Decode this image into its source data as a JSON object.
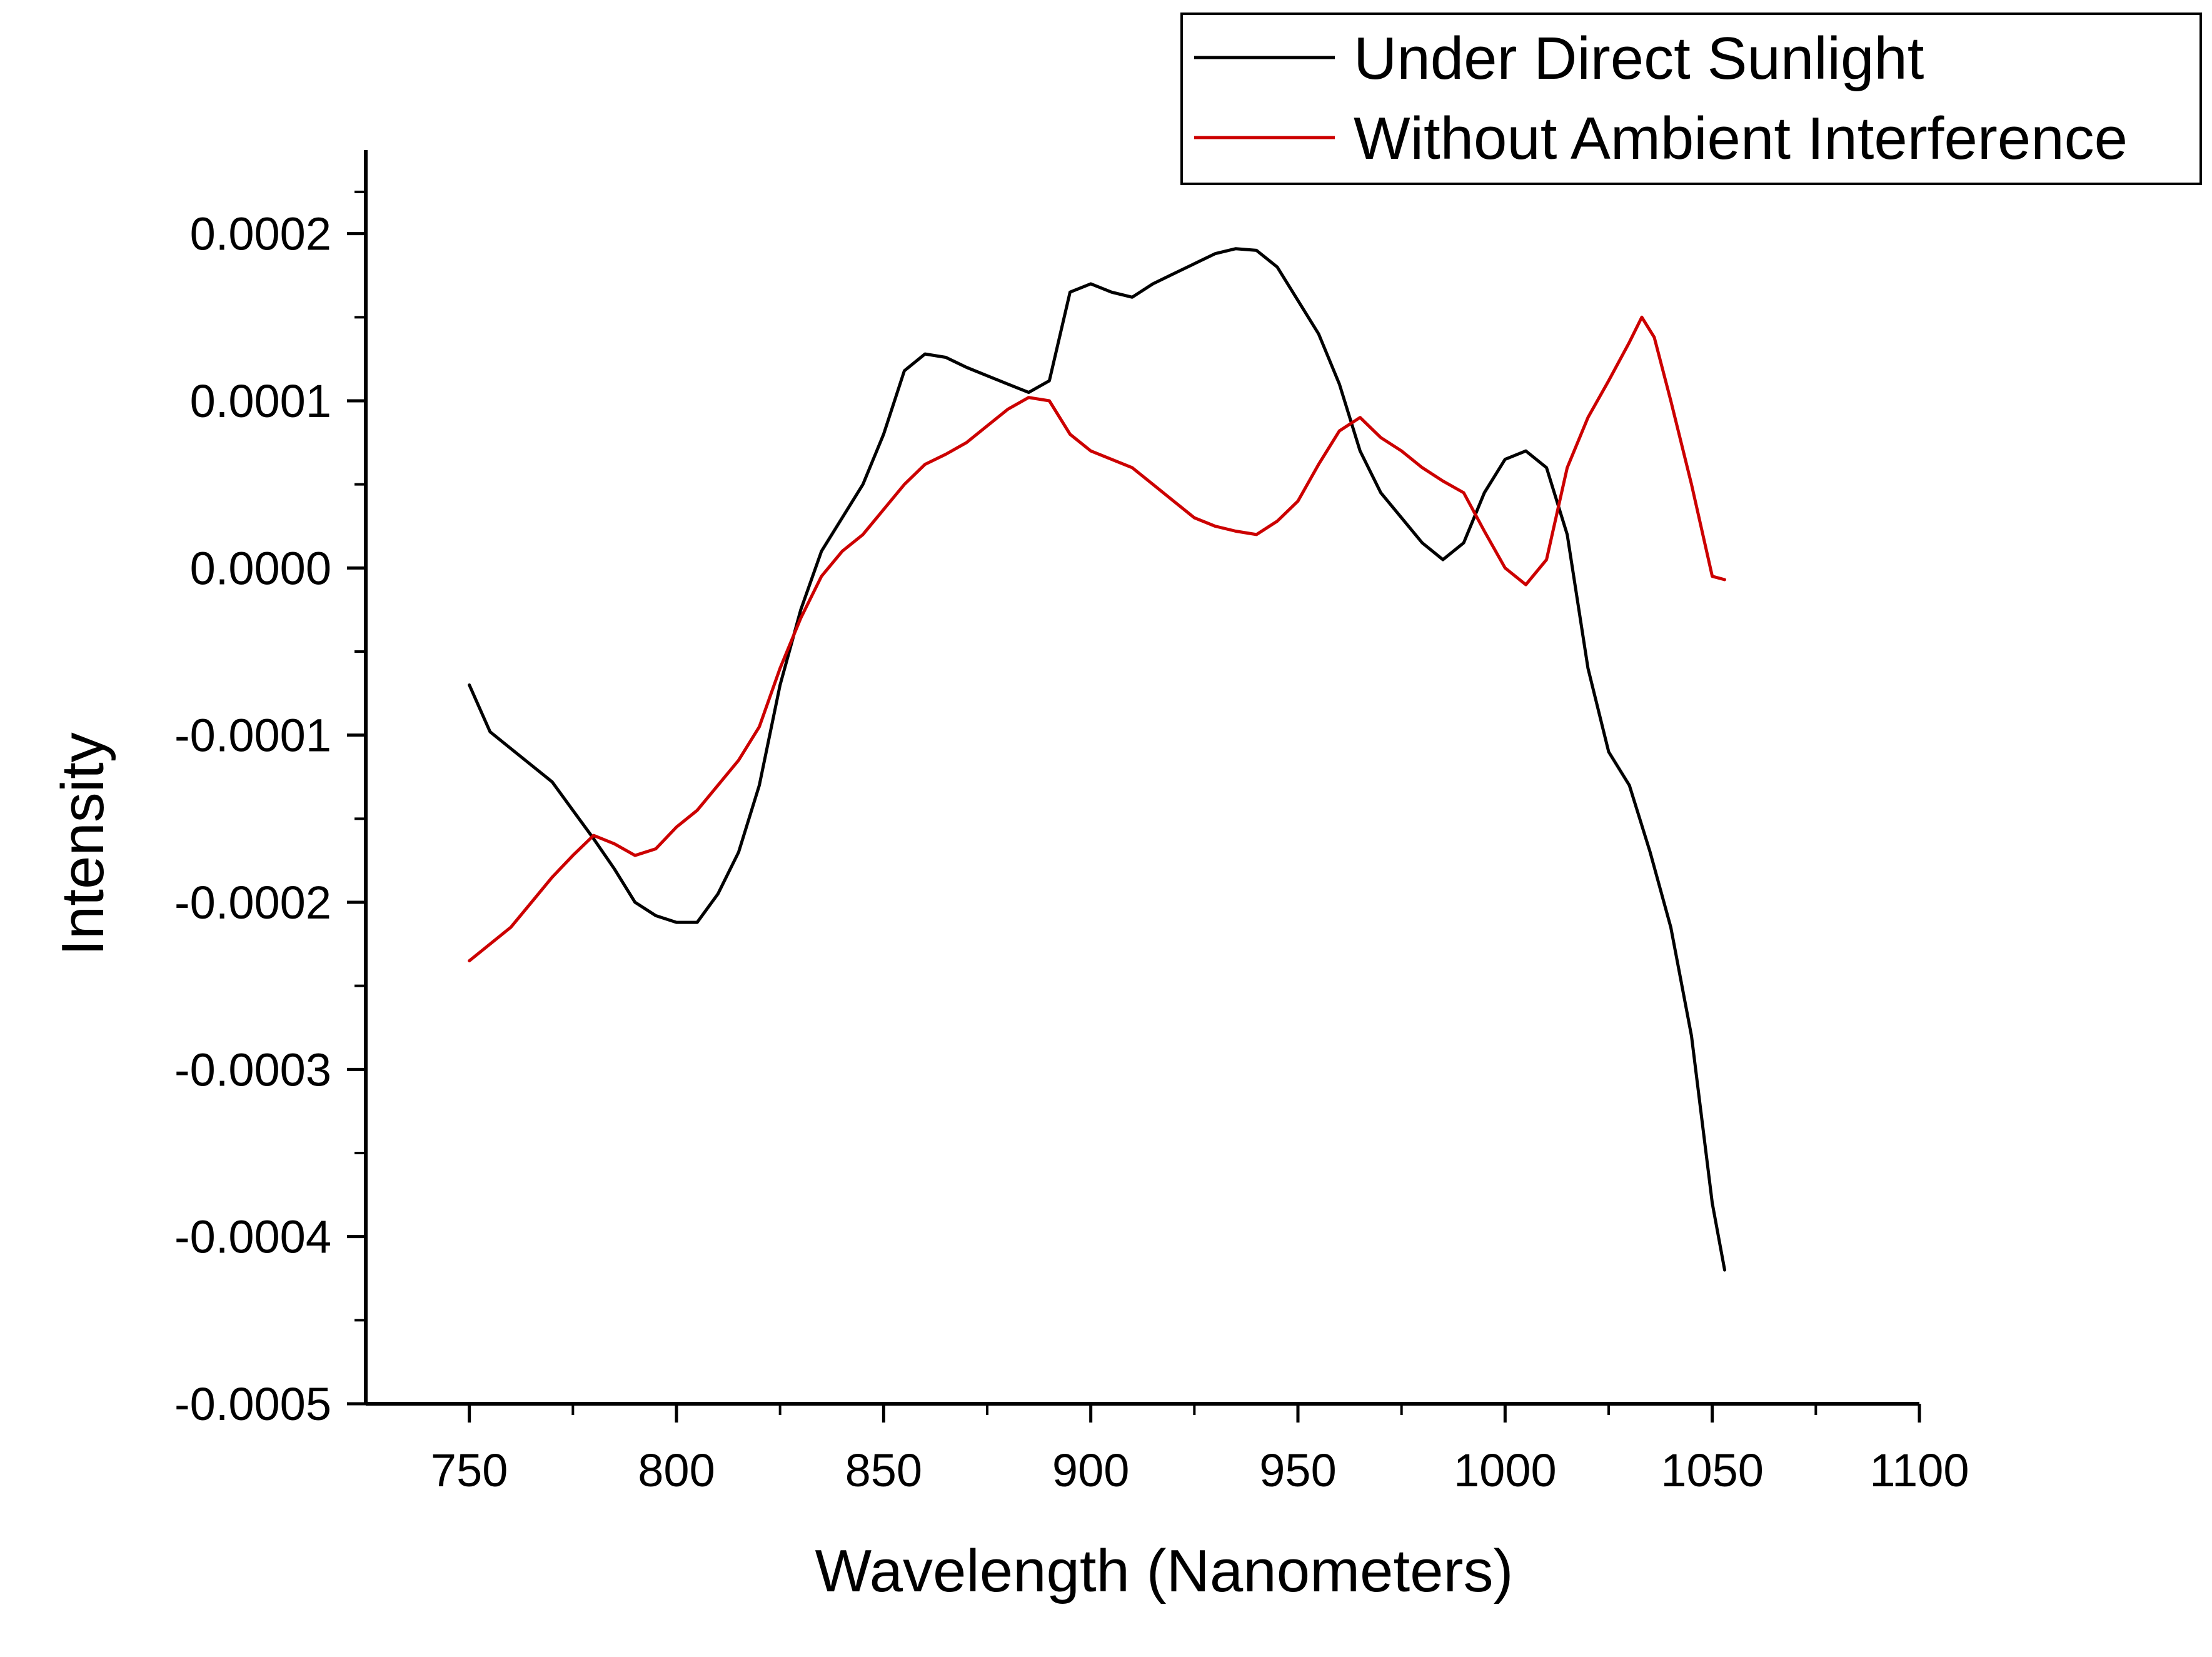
{
  "chart_data": {
    "type": "line",
    "title": "",
    "xlabel": "Wavelength (Nanometers)",
    "ylabel": "Intensity",
    "xlim": [
      725,
      1100
    ],
    "ylim": [
      -0.0005,
      0.00025
    ],
    "xticks": [
      750,
      800,
      850,
      900,
      950,
      1000,
      1050,
      1100
    ],
    "xtick_labels": [
      "750",
      "800",
      "850",
      "900",
      "950",
      "1000",
      "1050",
      "1100"
    ],
    "yticks": [
      -0.0005,
      -0.0004,
      -0.0003,
      -0.0002,
      -0.0001,
      0.0,
      0.0001,
      0.0002
    ],
    "ytick_labels": [
      "-0.0005",
      "-0.0004",
      "-0.0003",
      "-0.0002",
      "-0.0001",
      "0.0000",
      "0.0001",
      "0.0002"
    ],
    "grid": false,
    "legend_position": "top-right",
    "series": [
      {
        "name": "Under Direct Sunlight",
        "color": "#000000",
        "x": [
          750,
          755,
          760,
          765,
          770,
          775,
          780,
          785,
          790,
          795,
          800,
          805,
          810,
          815,
          820,
          825,
          830,
          835,
          840,
          845,
          850,
          855,
          860,
          865,
          870,
          875,
          880,
          885,
          890,
          895,
          900,
          905,
          910,
          915,
          920,
          925,
          930,
          935,
          940,
          945,
          950,
          955,
          960,
          965,
          970,
          975,
          980,
          985,
          990,
          995,
          1000,
          1005,
          1010,
          1015,
          1020,
          1025,
          1030,
          1035,
          1040,
          1045,
          1050,
          1053
        ],
        "y": [
          -7e-05,
          -9.8e-05,
          -0.000108,
          -0.000118,
          -0.000128,
          -0.000145,
          -0.000162,
          -0.00018,
          -0.0002,
          -0.000208,
          -0.000212,
          -0.000212,
          -0.000195,
          -0.00017,
          -0.00013,
          -7e-05,
          -2.5e-05,
          1e-05,
          3e-05,
          5e-05,
          8e-05,
          0.000118,
          0.000128,
          0.000126,
          0.00012,
          0.000115,
          0.00011,
          0.000105,
          0.000112,
          0.000165,
          0.00017,
          0.000165,
          0.000162,
          0.00017,
          0.000176,
          0.000182,
          0.000188,
          0.000191,
          0.00019,
          0.00018,
          0.00016,
          0.00014,
          0.00011,
          7e-05,
          4.5e-05,
          3e-05,
          1.5e-05,
          5e-06,
          1.5e-05,
          4.5e-05,
          6.5e-05,
          7e-05,
          6e-05,
          2e-05,
          -6e-05,
          -0.00011,
          -0.00013,
          -0.00017,
          -0.000215,
          -0.00028,
          -0.00038,
          -0.00042
        ]
      },
      {
        "name": "Without Ambient Interference",
        "color": "#cc0000",
        "x": [
          750,
          755,
          760,
          765,
          770,
          775,
          780,
          785,
          790,
          795,
          800,
          805,
          810,
          815,
          820,
          825,
          830,
          835,
          840,
          845,
          850,
          855,
          860,
          865,
          870,
          875,
          880,
          885,
          890,
          895,
          900,
          905,
          910,
          915,
          920,
          925,
          930,
          935,
          940,
          945,
          950,
          955,
          960,
          965,
          970,
          975,
          980,
          985,
          990,
          995,
          1000,
          1005,
          1010,
          1015,
          1020,
          1025,
          1030,
          1033,
          1036,
          1040,
          1045,
          1050,
          1053
        ],
        "y": [
          -0.000235,
          -0.000225,
          -0.000215,
          -0.0002,
          -0.000185,
          -0.000172,
          -0.00016,
          -0.000165,
          -0.000172,
          -0.000168,
          -0.000155,
          -0.000145,
          -0.00013,
          -0.000115,
          -9.5e-05,
          -6e-05,
          -3e-05,
          -5e-06,
          1e-05,
          2e-05,
          3.5e-05,
          5e-05,
          6.2e-05,
          6.8e-05,
          7.5e-05,
          8.5e-05,
          9.5e-05,
          0.000102,
          0.0001,
          8e-05,
          7e-05,
          6.5e-05,
          6e-05,
          5e-05,
          4e-05,
          3e-05,
          2.5e-05,
          2.2e-05,
          2e-05,
          2.8e-05,
          4e-05,
          6.2e-05,
          8.2e-05,
          9e-05,
          7.8e-05,
          7e-05,
          6e-05,
          5.2e-05,
          4.5e-05,
          2.2e-05,
          0.0,
          -1e-05,
          5e-06,
          6e-05,
          9e-05,
          0.000112,
          0.000135,
          0.00015,
          0.000138,
          0.0001,
          5e-05,
          -5e-06,
          -7e-06
        ]
      }
    ]
  }
}
